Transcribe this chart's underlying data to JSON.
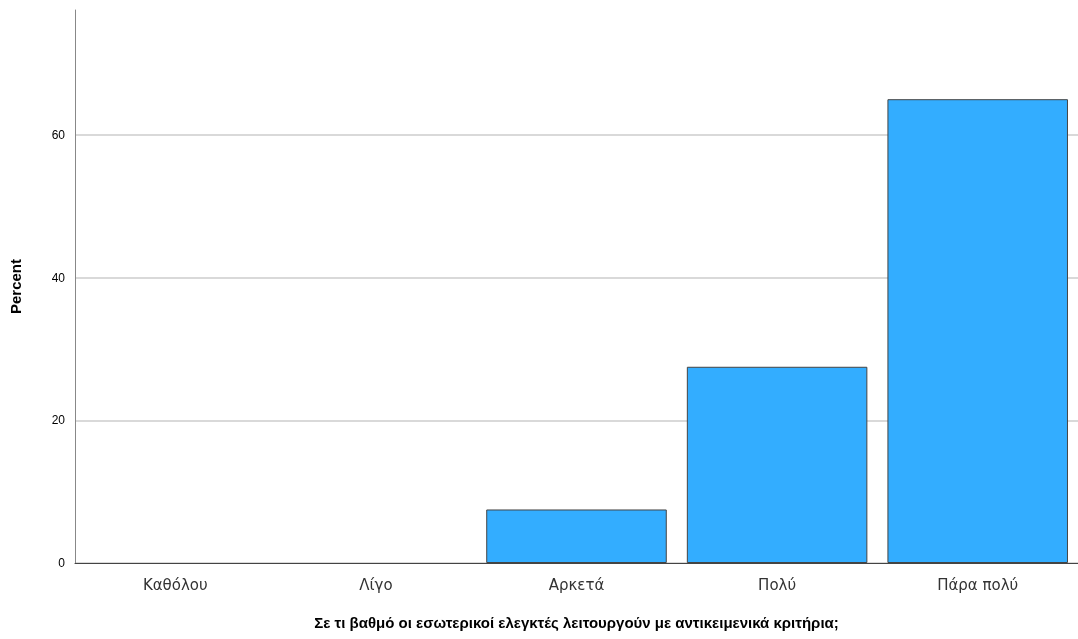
{
  "chart_data": {
    "type": "bar",
    "xlabel": "Σε τι βαθμό οι εσωτερικοί ελεγκτές λειτουργούν με αντικειμενικά κριτήρια;",
    "ylabel": "Percent",
    "categories": [
      "Καθόλου",
      "Λίγο",
      "Αρκετά",
      "Πολύ",
      "Πάρα πολύ"
    ],
    "values": [
      0,
      0,
      7.5,
      27.5,
      65
    ],
    "color": "#33adff",
    "ylim": [
      0,
      77.5
    ],
    "yticks": [
      0,
      20,
      40,
      60
    ],
    "grid": "y"
  }
}
